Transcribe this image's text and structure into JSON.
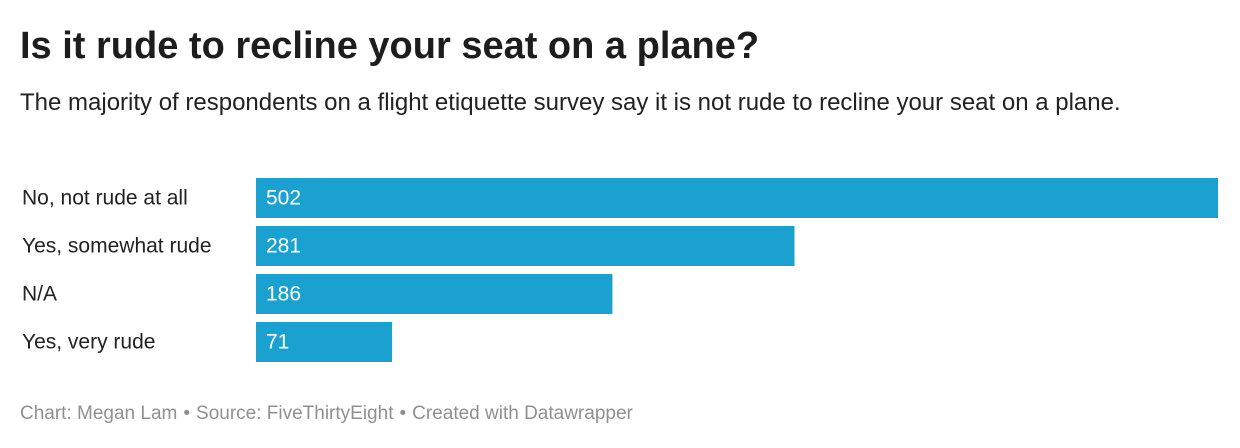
{
  "title": "Is it rude to recline your seat on a plane?",
  "subtitle": "The majority of respondents on a flight etiquette survey say it is not rude to recline your seat on a plane.",
  "footer": {
    "chart_credit": "Chart: Megan Lam",
    "source": "Source: FiveThirtyEight",
    "tool": "Created with Datawrapper",
    "separator": "•"
  },
  "colors": {
    "bar": "#1aa1d0",
    "bar_label": "#ffffff",
    "category_label": "#222222"
  },
  "chart_data": {
    "type": "bar",
    "orientation": "horizontal",
    "categories": [
      "No, not rude at all",
      "Yes, somewhat rude",
      "N/A",
      "Yes, very rude"
    ],
    "values": [
      502,
      281,
      186,
      71
    ],
    "title": "Is it rude to recline your seat on a plane?",
    "xlim": [
      0,
      502
    ],
    "grid": false,
    "legend": "none",
    "data_labels": "inside-left"
  }
}
